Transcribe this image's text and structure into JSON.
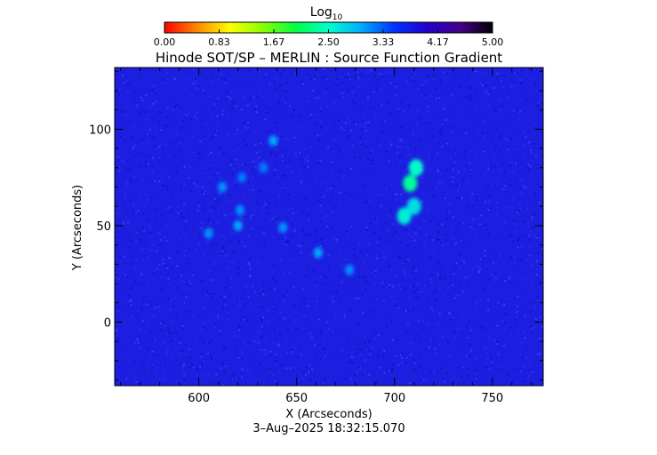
{
  "colorbar": {
    "label_main": "Log",
    "label_sub": "10",
    "ticks": [
      "0.00",
      "0.83",
      "1.67",
      "2.50",
      "3.33",
      "4.17",
      "5.00"
    ],
    "range": [
      0,
      5
    ],
    "colormap": [
      "#ff0000",
      "#ff8800",
      "#ffff00",
      "#88ff00",
      "#00ff44",
      "#00ffcc",
      "#00aaff",
      "#0033ff",
      "#2200cc",
      "#440088",
      "#000000"
    ]
  },
  "chart_data": {
    "type": "heatmap",
    "title": "Hinode SOT/SP – MERLIN : Source Function Gradient",
    "xlabel": "X (Arcseconds)",
    "ylabel": "Y (Arcseconds)",
    "xlim": [
      557,
      776
    ],
    "ylim": [
      -33,
      132
    ],
    "xticks": [
      600,
      650,
      700,
      750
    ],
    "yticks": [
      0,
      50,
      100
    ],
    "background_value": 3.9,
    "features": [
      {
        "x": 708,
        "y": 72,
        "value": 2.3
      },
      {
        "x": 711,
        "y": 80,
        "value": 2.5
      },
      {
        "x": 705,
        "y": 55,
        "value": 2.6
      },
      {
        "x": 710,
        "y": 60,
        "value": 2.7
      },
      {
        "x": 620,
        "y": 50,
        "value": 3.0
      },
      {
        "x": 605,
        "y": 46,
        "value": 3.1
      },
      {
        "x": 612,
        "y": 70,
        "value": 3.1
      },
      {
        "x": 621,
        "y": 58,
        "value": 3.1
      },
      {
        "x": 643,
        "y": 49,
        "value": 3.1
      },
      {
        "x": 661,
        "y": 36,
        "value": 3.0
      },
      {
        "x": 677,
        "y": 27,
        "value": 3.1
      },
      {
        "x": 638,
        "y": 94,
        "value": 3.0
      },
      {
        "x": 622,
        "y": 75,
        "value": 3.2
      },
      {
        "x": 633,
        "y": 80,
        "value": 3.2
      }
    ]
  },
  "timestamp": "3–Aug–2025 18:32:15.070"
}
